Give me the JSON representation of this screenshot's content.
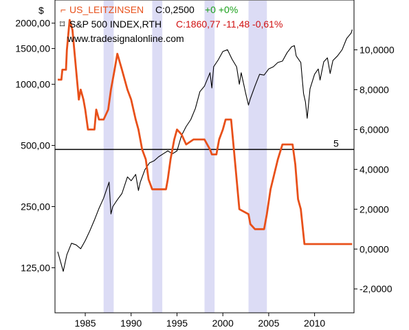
{
  "chart_data": {
    "type": "line",
    "currency_label": "$",
    "watermark": "www.tradesignalonline.com",
    "legend": [
      {
        "marker": "⌐",
        "name": "US_LEITZINSEN",
        "quote": "C:0,2500",
        "change": "+0 +0%",
        "color": "#e8501a",
        "change_color": "#1aa01a"
      },
      {
        "marker": "⌑",
        "name": "S&P 500 INDEX,RTH",
        "quote": "C:1860,77 -11,48 -0,61%",
        "color": "#000000",
        "quote_color": "#d01010"
      }
    ],
    "x_ticks": [
      "1985",
      "1990",
      "1995",
      "2000",
      "2005",
      "2010"
    ],
    "x_range": [
      1981.7,
      2014.3
    ],
    "left_axis": {
      "scale": "log",
      "range": [
        75,
        2600
      ],
      "ticks": [
        "125,00",
        "250,00",
        "500,00",
        "1000,00",
        "1500,00",
        "2000,00"
      ]
    },
    "right_axis": {
      "range": [
        -3.2,
        12.5
      ],
      "ticks": [
        "-2,0000",
        "0,0000",
        "2,0000",
        "4,0000",
        "6,0000",
        "8,0000",
        "10,0000"
      ]
    },
    "recession_bands": [
      [
        1987.0,
        1988.1
      ],
      [
        1992.3,
        1993.4
      ],
      [
        1998.0,
        1999.1
      ],
      [
        2002.8,
        2004.8
      ]
    ],
    "band_color": "#dcdcf5",
    "reference_line": {
      "value": 5,
      "label": "5"
    },
    "series": [
      {
        "name": "S&P 500 INDEX,RTH",
        "axis": "left",
        "color": "#000000",
        "points": [
          [
            1982.0,
            150
          ],
          [
            1982.6,
            120
          ],
          [
            1983.0,
            145
          ],
          [
            1983.5,
            165
          ],
          [
            1984.0,
            162
          ],
          [
            1984.5,
            155
          ],
          [
            1985.0,
            170
          ],
          [
            1985.5,
            190
          ],
          [
            1986.0,
            215
          ],
          [
            1986.5,
            245
          ],
          [
            1987.0,
            275
          ],
          [
            1987.6,
            330
          ],
          [
            1987.8,
            230
          ],
          [
            1988.0,
            250
          ],
          [
            1988.5,
            270
          ],
          [
            1989.0,
            290
          ],
          [
            1989.6,
            350
          ],
          [
            1990.0,
            335
          ],
          [
            1990.5,
            360
          ],
          [
            1990.8,
            300
          ],
          [
            1991.0,
            330
          ],
          [
            1991.5,
            380
          ],
          [
            1992.0,
            410
          ],
          [
            1992.5,
            420
          ],
          [
            1993.0,
            440
          ],
          [
            1993.5,
            455
          ],
          [
            1994.0,
            470
          ],
          [
            1994.5,
            455
          ],
          [
            1995.0,
            470
          ],
          [
            1995.5,
            560
          ],
          [
            1996.0,
            620
          ],
          [
            1996.5,
            670
          ],
          [
            1997.0,
            760
          ],
          [
            1997.5,
            920
          ],
          [
            1998.0,
            980
          ],
          [
            1998.6,
            1140
          ],
          [
            1998.8,
            960
          ],
          [
            1999.0,
            1220
          ],
          [
            1999.5,
            1320
          ],
          [
            2000.0,
            1450
          ],
          [
            2000.5,
            1480
          ],
          [
            2001.0,
            1330
          ],
          [
            2001.5,
            1220
          ],
          [
            2001.8,
            1000
          ],
          [
            2002.0,
            1140
          ],
          [
            2002.5,
            900
          ],
          [
            2002.8,
            790
          ],
          [
            2003.0,
            850
          ],
          [
            2003.5,
            980
          ],
          [
            2004.0,
            1120
          ],
          [
            2004.5,
            1110
          ],
          [
            2005.0,
            1190
          ],
          [
            2005.5,
            1220
          ],
          [
            2006.0,
            1280
          ],
          [
            2006.5,
            1300
          ],
          [
            2007.0,
            1430
          ],
          [
            2007.5,
            1530
          ],
          [
            2007.8,
            1550
          ],
          [
            2008.0,
            1380
          ],
          [
            2008.5,
            1280
          ],
          [
            2008.8,
            900
          ],
          [
            2009.0,
            820
          ],
          [
            2009.2,
            680
          ],
          [
            2009.5,
            950
          ],
          [
            2010.0,
            1120
          ],
          [
            2010.4,
            1190
          ],
          [
            2010.6,
            1050
          ],
          [
            2011.0,
            1290
          ],
          [
            2011.4,
            1350
          ],
          [
            2011.7,
            1130
          ],
          [
            2012.0,
            1310
          ],
          [
            2012.5,
            1380
          ],
          [
            2013.0,
            1480
          ],
          [
            2013.5,
            1680
          ],
          [
            2014.0,
            1790
          ],
          [
            2014.1,
            1860
          ]
        ]
      },
      {
        "name": "US_LEITZINSEN",
        "axis": "right",
        "color": "#e8501a",
        "points": [
          [
            1982.0,
            8.5
          ],
          [
            1982.4,
            8.5
          ],
          [
            1982.5,
            9.0
          ],
          [
            1982.9,
            9.0
          ],
          [
            1983.0,
            10.0
          ],
          [
            1983.3,
            11.5
          ],
          [
            1983.6,
            11.0
          ],
          [
            1984.0,
            9.0
          ],
          [
            1984.3,
            7.5
          ],
          [
            1984.5,
            8.0
          ],
          [
            1984.8,
            7.5
          ],
          [
            1985.0,
            7.0
          ],
          [
            1985.3,
            6.0
          ],
          [
            1986.0,
            6.0
          ],
          [
            1986.2,
            7.0
          ],
          [
            1986.5,
            6.5
          ],
          [
            1986.8,
            6.5
          ],
          [
            1987.0,
            6.5
          ],
          [
            1987.5,
            7.0
          ],
          [
            1987.8,
            8.0
          ],
          [
            1988.2,
            9.0
          ],
          [
            1988.5,
            9.8
          ],
          [
            1989.0,
            9.0
          ],
          [
            1989.6,
            8.0
          ],
          [
            1990.0,
            7.5
          ],
          [
            1990.5,
            6.5
          ],
          [
            1990.8,
            6.0
          ],
          [
            1991.2,
            5.0
          ],
          [
            1991.6,
            4.5
          ],
          [
            1991.9,
            3.5
          ],
          [
            1992.3,
            3.0
          ],
          [
            1993.8,
            3.0
          ],
          [
            1994.0,
            3.5
          ],
          [
            1994.3,
            4.5
          ],
          [
            1994.7,
            5.5
          ],
          [
            1995.0,
            6.0
          ],
          [
            1995.5,
            5.75
          ],
          [
            1996.0,
            5.25
          ],
          [
            1996.8,
            5.5
          ],
          [
            1998.0,
            5.5
          ],
          [
            1998.6,
            5.0
          ],
          [
            1998.8,
            4.75
          ],
          [
            1999.3,
            4.75
          ],
          [
            1999.6,
            5.5
          ],
          [
            2000.0,
            6.0
          ],
          [
            2000.3,
            6.5
          ],
          [
            2000.9,
            6.5
          ],
          [
            2001.1,
            5.5
          ],
          [
            2001.4,
            4.0
          ],
          [
            2001.8,
            2.0
          ],
          [
            2002.8,
            1.75
          ],
          [
            2003.0,
            1.25
          ],
          [
            2003.5,
            1.0
          ],
          [
            2004.5,
            1.0
          ],
          [
            2004.8,
            1.75
          ],
          [
            2005.2,
            3.0
          ],
          [
            2005.6,
            3.75
          ],
          [
            2006.0,
            4.5
          ],
          [
            2006.5,
            5.25
          ],
          [
            2007.6,
            5.25
          ],
          [
            2007.9,
            4.25
          ],
          [
            2008.2,
            2.5
          ],
          [
            2008.5,
            2.0
          ],
          [
            2008.9,
            0.25
          ],
          [
            2014.1,
            0.25
          ]
        ]
      }
    ]
  }
}
